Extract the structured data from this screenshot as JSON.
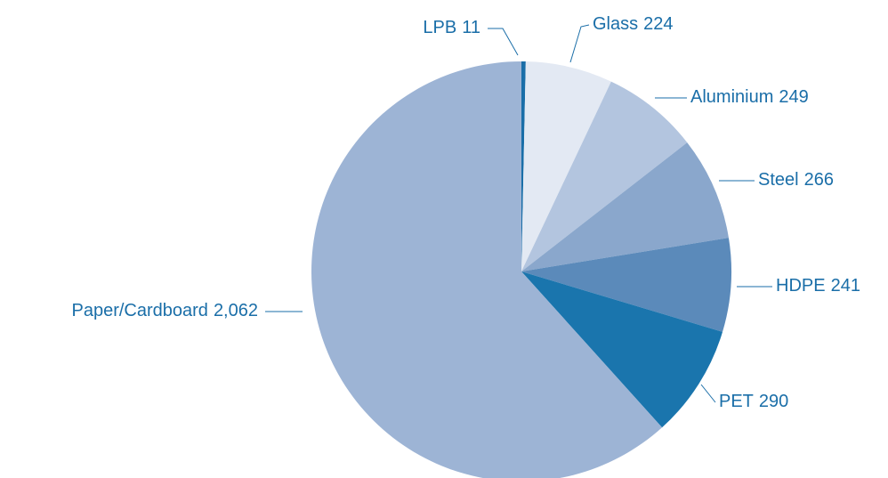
{
  "chart_data": {
    "type": "pie",
    "categories": [
      "LPB",
      "Glass",
      "Aluminium",
      "Steel",
      "HDPE",
      "PET",
      "Paper/Cardboard"
    ],
    "values": [
      11,
      224,
      249,
      266,
      241,
      290,
      2062
    ],
    "value_labels": [
      "11",
      "224",
      "249",
      "266",
      "241",
      "290",
      "2,062"
    ],
    "colors": [
      "#1a6ea8",
      "#e3e9f3",
      "#b3c5df",
      "#8aa7cc",
      "#5b8aba",
      "#1a75ad",
      "#9db4d5"
    ]
  }
}
